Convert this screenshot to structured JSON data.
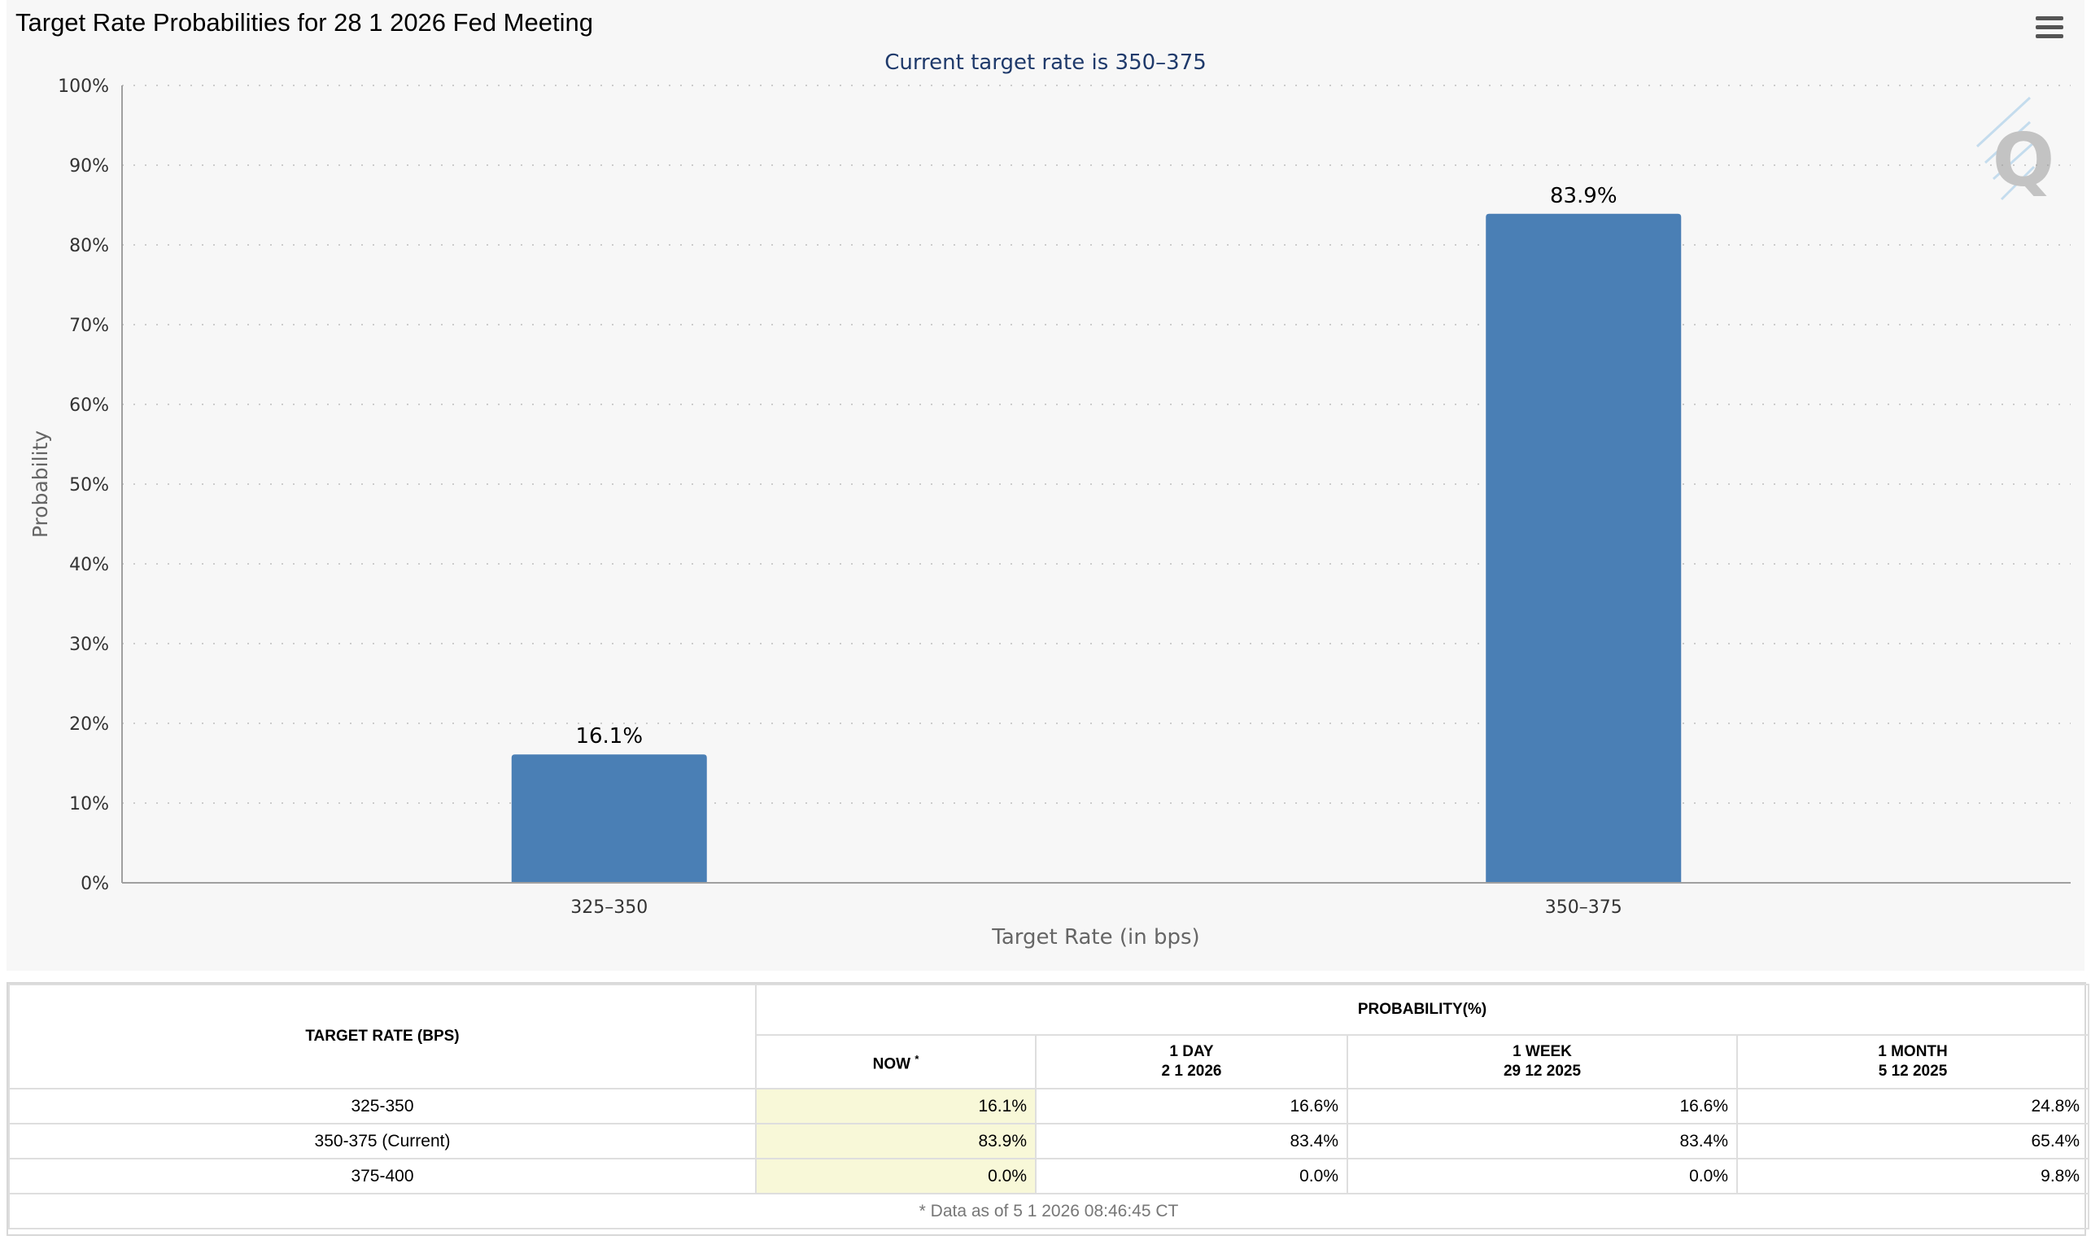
{
  "title": "Target Rate Probabilities for 28 1 2026 Fed Meeting",
  "chart_data": {
    "type": "bar",
    "title": "Target Rate Probabilities for 28 1 2026 Fed Meeting",
    "subtitle": "Current target rate is 350–375",
    "xlabel": "Target Rate (in bps)",
    "ylabel": "Probability",
    "categories": [
      "325–350",
      "350–375"
    ],
    "values": [
      16.1,
      83.9
    ],
    "data_labels": [
      "16.1%",
      "83.9%"
    ],
    "ylim": [
      0,
      100
    ],
    "yticks": [
      "0%",
      "10%",
      "20%",
      "30%",
      "40%",
      "50%",
      "60%",
      "70%",
      "80%",
      "90%",
      "100%"
    ],
    "grid": true,
    "bar_color": "#4a7fb5",
    "subtitle_color": "#1f3a6b"
  },
  "table": {
    "header_rate": "TARGET RATE (BPS)",
    "header_prob": "PROBABILITY(%)",
    "columns": [
      {
        "line1": "NOW",
        "line2": "",
        "star": "*"
      },
      {
        "line1": "1 DAY",
        "line2": "2 1 2026",
        "star": ""
      },
      {
        "line1": "1 WEEK",
        "line2": "29 12 2025",
        "star": ""
      },
      {
        "line1": "1 MONTH",
        "line2": "5 12 2025",
        "star": ""
      }
    ],
    "rows": [
      {
        "rate": "325-350",
        "values": [
          "16.1%",
          "16.6%",
          "16.6%",
          "24.8%"
        ]
      },
      {
        "rate": "350-375 (Current)",
        "values": [
          "83.9%",
          "83.4%",
          "83.4%",
          "65.4%"
        ]
      },
      {
        "rate": "375-400",
        "values": [
          "0.0%",
          "0.0%",
          "0.0%",
          "9.8%"
        ]
      }
    ],
    "footnote": "* Data as of 5 1 2026 08:46:45 CT"
  }
}
